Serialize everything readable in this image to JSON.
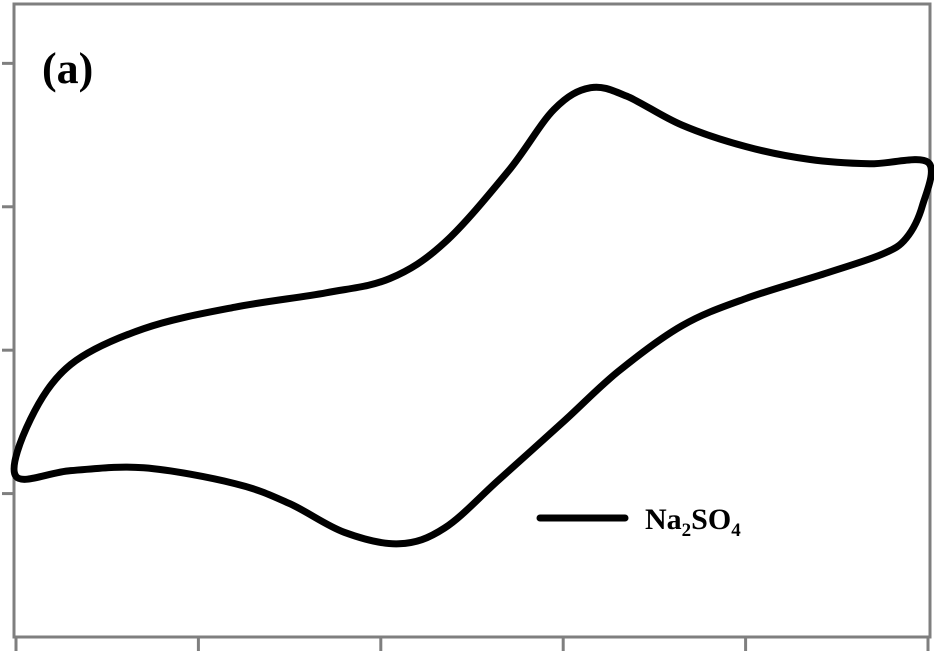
{
  "chart_data": {
    "type": "line",
    "panel_label": "(a)",
    "title": "",
    "xlabel": "",
    "ylabel": "",
    "xlim": [
      0,
      5
    ],
    "ylim": [
      0,
      4.4
    ],
    "x_ticks": [
      0,
      1,
      2,
      3,
      4,
      5
    ],
    "y_ticks": [
      1,
      2,
      3,
      4
    ],
    "grid": false,
    "legend": {
      "position": "bottom-right",
      "entries": [
        {
          "name_main": "Na",
          "name_sub1": "2",
          "name_mid": "SO",
          "name_sub2": "4",
          "color": "#000000"
        }
      ]
    },
    "series": [
      {
        "name": "Na2SO4",
        "color": "#000000",
        "closed": true,
        "points": [
          [
            0.0,
            1.12
          ],
          [
            0.08,
            1.52
          ],
          [
            0.3,
            1.9
          ],
          [
            0.7,
            2.15
          ],
          [
            1.2,
            2.3
          ],
          [
            1.7,
            2.4
          ],
          [
            2.05,
            2.5
          ],
          [
            2.35,
            2.75
          ],
          [
            2.7,
            3.25
          ],
          [
            2.95,
            3.68
          ],
          [
            3.15,
            3.83
          ],
          [
            3.35,
            3.77
          ],
          [
            3.65,
            3.57
          ],
          [
            4.0,
            3.42
          ],
          [
            4.35,
            3.33
          ],
          [
            4.68,
            3.3
          ],
          [
            5.0,
            3.31
          ],
          [
            4.97,
            3.01
          ],
          [
            4.88,
            2.78
          ],
          [
            4.75,
            2.67
          ],
          [
            4.45,
            2.54
          ],
          [
            4.0,
            2.36
          ],
          [
            3.65,
            2.17
          ],
          [
            3.3,
            1.85
          ],
          [
            3.0,
            1.5
          ],
          [
            2.65,
            1.1
          ],
          [
            2.35,
            0.76
          ],
          [
            2.1,
            0.65
          ],
          [
            1.8,
            0.73
          ],
          [
            1.5,
            0.93
          ],
          [
            1.2,
            1.07
          ],
          [
            0.7,
            1.18
          ],
          [
            0.3,
            1.16
          ],
          [
            0.0,
            1.12
          ]
        ]
      }
    ]
  }
}
